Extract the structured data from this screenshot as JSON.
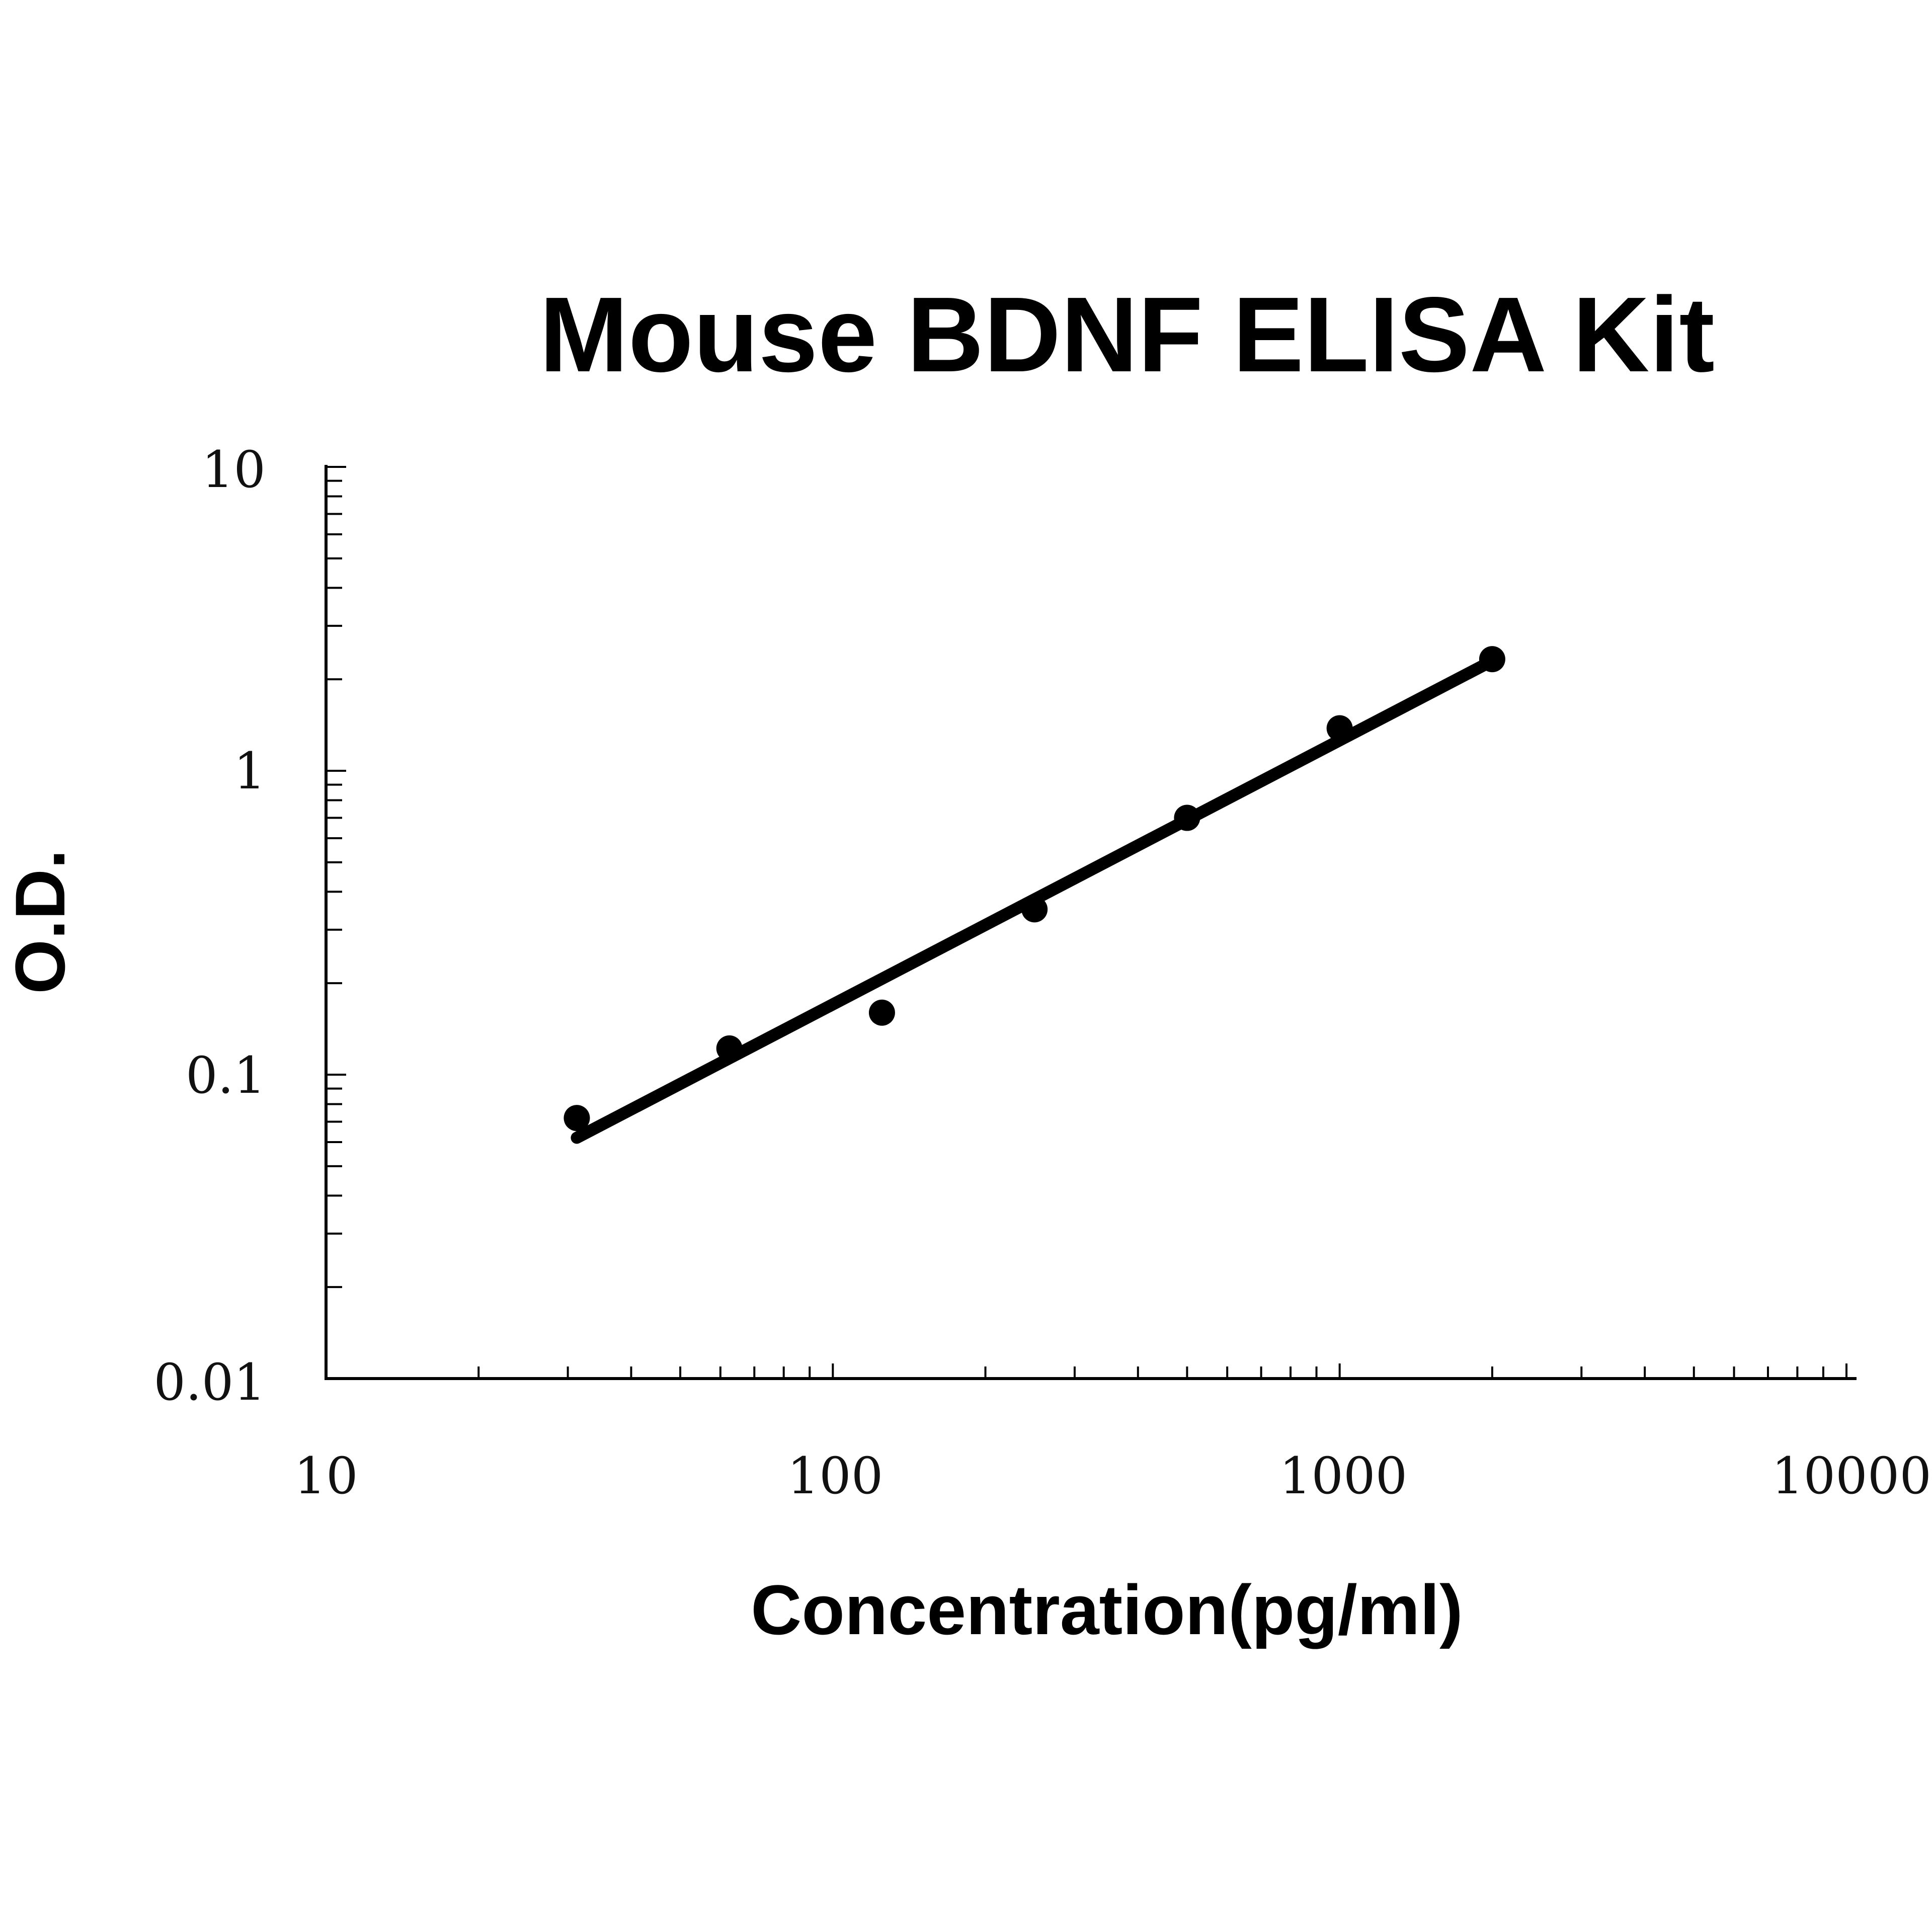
{
  "chart_data": {
    "type": "scatter",
    "title": "Mouse BDNF ELISA Kit",
    "xlabel": "Concentration(pg/ml)",
    "ylabel": "O.D.",
    "x_scale": "log",
    "y_scale": "log",
    "xlim": [
      10,
      10000
    ],
    "ylim": [
      0.01,
      10
    ],
    "x_tick_labels": [
      "10",
      "100",
      "1000",
      "10000"
    ],
    "y_tick_labels": [
      "10",
      "1",
      "0.1",
      "0.01"
    ],
    "grid": false,
    "legend": "none",
    "series": [
      {
        "x": [
          31.25,
          62.5,
          125,
          250,
          500,
          1000,
          2000
        ],
        "y": [
          0.072,
          0.122,
          0.16,
          0.35,
          0.7,
          1.38,
          2.33
        ]
      }
    ],
    "fit_line": {
      "x": [
        31.25,
        2000
      ],
      "y": [
        0.062,
        2.3
      ]
    },
    "colors": {
      "marker": "#000000",
      "line": "#000000"
    }
  }
}
